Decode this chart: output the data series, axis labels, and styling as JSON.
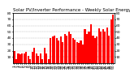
{
  "title": "Solar PV/Inverter Performance - Weekly Solar Energy Production",
  "bar_color": "#ff0000",
  "background_color": "#ffffff",
  "grid_color": "#888888",
  "categories": [
    "1",
    "2",
    "3",
    "4",
    "5",
    "6",
    "7",
    "8",
    "9",
    "10",
    "11",
    "12",
    "13",
    "14",
    "15",
    "16",
    "17",
    "18",
    "19",
    "20",
    "21",
    "22",
    "23",
    "24",
    "25",
    "26",
    "27",
    "28",
    "29",
    "30",
    "31",
    "32",
    "33",
    "34",
    "35",
    "36",
    "37",
    "38",
    "39",
    "40",
    "41",
    "42",
    "43",
    "44",
    "45",
    "46",
    "47",
    "48",
    "49",
    "50"
  ],
  "values": [
    20,
    6,
    16,
    14,
    16,
    15,
    18,
    11,
    6,
    18,
    24,
    15,
    11,
    15,
    6,
    24,
    16,
    6,
    40,
    42,
    44,
    40,
    36,
    42,
    34,
    46,
    44,
    50,
    46,
    40,
    38,
    34,
    32,
    36,
    30,
    54,
    46,
    50,
    62,
    44,
    40,
    42,
    56,
    50,
    54,
    50,
    57,
    44,
    70,
    78
  ],
  "ylim": [
    0,
    80
  ],
  "yticks": [
    10,
    20,
    30,
    40,
    50,
    60,
    70,
    80
  ],
  "title_fontsize": 4.0,
  "tick_fontsize": 3.2
}
